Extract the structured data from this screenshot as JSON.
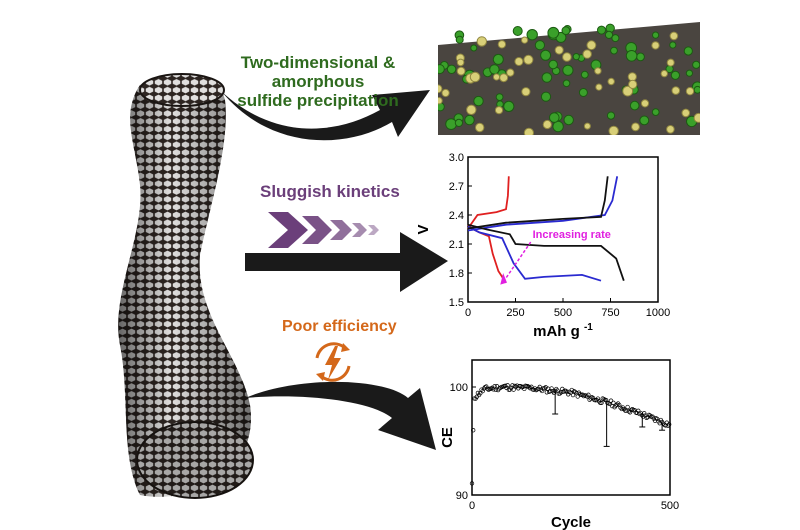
{
  "labels": {
    "precipitation_line1": "Two-dimensional &",
    "precipitation_line2": "amorphous",
    "precipitation_line3": "sulfide precipitation",
    "kinetics": "Sluggish kinetics",
    "efficiency": "Poor efficiency"
  },
  "colors": {
    "green_label": "#2f6b1f",
    "purple_label": "#6b3f7a",
    "orange_label": "#d4681a",
    "arrow": "#1a1a1a",
    "rate_annotation": "#e020e0"
  },
  "icons": [
    "carbon-nanotube",
    "sulfide-surface-render",
    "chevron-arrows-icon",
    "lightning-cycle-icon"
  ],
  "chart_data": [
    {
      "type": "line",
      "xlabel": "mAh g",
      "xlabel_sup": "-1",
      "ylabel": "V",
      "xlim": [
        0,
        1000
      ],
      "ylim": [
        1.5,
        3.0
      ],
      "x_ticks": [
        "0",
        "250",
        "500",
        "750",
        "1000"
      ],
      "y_ticks": [
        "1.5",
        "1.8",
        "2.1",
        "2.4",
        "2.7",
        "3.0"
      ],
      "annotation": "Increasing rate",
      "series": [
        {
          "color": "#e02020",
          "discharge": [
            [
              0,
              2.3
            ],
            [
              20,
              2.26
            ],
            [
              60,
              2.22
            ],
            [
              110,
              2.18
            ],
            [
              130,
              2.0
            ],
            [
              160,
              1.82
            ],
            [
              200,
              1.7
            ]
          ],
          "charge": [
            [
              0,
              2.26
            ],
            [
              50,
              2.4
            ],
            [
              150,
              2.43
            ],
            [
              200,
              2.46
            ],
            [
              210,
              2.6
            ],
            [
              215,
              2.8
            ]
          ]
        },
        {
          "color": "#2a2ad0",
          "discharge": [
            [
              0,
              2.28
            ],
            [
              60,
              2.22
            ],
            [
              180,
              2.16
            ],
            [
              240,
              1.9
            ],
            [
              300,
              1.74
            ],
            [
              400,
              1.76
            ],
            [
              600,
              1.78
            ],
            [
              700,
              1.72
            ]
          ],
          "charge": [
            [
              0,
              2.24
            ],
            [
              200,
              2.3
            ],
            [
              500,
              2.34
            ],
            [
              720,
              2.4
            ],
            [
              760,
              2.55
            ],
            [
              785,
              2.8
            ]
          ]
        },
        {
          "color": "#111111",
          "discharge": [
            [
              0,
              2.3
            ],
            [
              100,
              2.25
            ],
            [
              220,
              2.2
            ],
            [
              250,
              2.1
            ],
            [
              400,
              2.08
            ],
            [
              700,
              2.08
            ],
            [
              780,
              1.95
            ],
            [
              820,
              1.72
            ]
          ],
          "charge": [
            [
              0,
              2.26
            ],
            [
              200,
              2.32
            ],
            [
              500,
              2.36
            ],
            [
              700,
              2.38
            ],
            [
              720,
              2.55
            ],
            [
              735,
              2.8
            ]
          ]
        }
      ]
    },
    {
      "type": "scatter",
      "xlabel": "Cycle",
      "ylabel": "CE",
      "xlim": [
        0,
        500
      ],
      "ylim": [
        90,
        102.5
      ],
      "x_ticks": [
        "0",
        "500"
      ],
      "y_ticks": [
        "90",
        "100"
      ],
      "trend": [
        [
          0,
          91
        ],
        [
          5,
          99
        ],
        [
          30,
          99.8
        ],
        [
          80,
          100
        ],
        [
          150,
          99.9
        ],
        [
          250,
          99.5
        ],
        [
          350,
          98.5
        ],
        [
          420,
          97.6
        ],
        [
          500,
          96.5
        ]
      ],
      "outliers": [
        [
          210,
          97.5
        ],
        [
          340,
          94.5
        ],
        [
          430,
          96.3
        ],
        [
          480,
          96.0
        ]
      ]
    }
  ]
}
